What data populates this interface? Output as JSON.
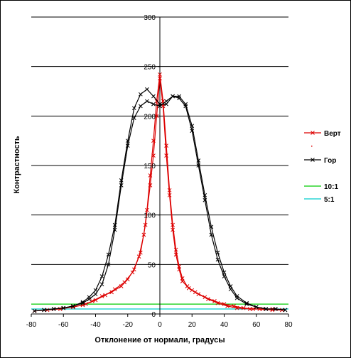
{
  "chart_data": {
    "type": "line",
    "title": "",
    "xlabel": "Отклонение от нормали, градусы",
    "ylabel": "Контрастность",
    "xlim": [
      -80,
      80
    ],
    "ylim": [
      0,
      300
    ],
    "x_ticks": [
      "-80",
      "-60",
      "-40",
      "-20",
      "0",
      "20",
      "40",
      "60",
      "80"
    ],
    "y_ticks": [
      "0",
      "50",
      "100",
      "150",
      "200",
      "250",
      "300"
    ],
    "grid": "horizontal",
    "legend_position": "right",
    "series": [
      {
        "name": "Верт",
        "color": "#dd0000",
        "marker": "x",
        "x": [
          -78,
          -72,
          -66,
          -60,
          -54,
          -48,
          -42,
          -36,
          -30,
          -24,
          -20,
          -16,
          -12,
          -9,
          -6,
          -4,
          -2,
          0,
          2,
          4,
          6,
          8,
          10,
          12,
          14,
          18,
          22,
          28,
          34,
          40,
          46,
          52,
          58,
          64,
          70,
          76
        ],
        "y": [
          3,
          4,
          5,
          6,
          7,
          9,
          13,
          18,
          22,
          28,
          35,
          45,
          62,
          90,
          130,
          160,
          200,
          238,
          210,
          160,
          120,
          85,
          60,
          45,
          33,
          26,
          22,
          17,
          13,
          10,
          8,
          6,
          5,
          5,
          5,
          4
        ]
      },
      {
        "name": "Верт",
        "color": "#dd0000",
        "marker": "x",
        "x": [
          -78,
          -70,
          -62,
          -54,
          -46,
          -40,
          -34,
          -28,
          -22,
          -17,
          -13,
          -10,
          -8,
          -6,
          -4,
          -2,
          0,
          2,
          4,
          6,
          8,
          10,
          12,
          14,
          17,
          20,
          24,
          30,
          36,
          42,
          48,
          56,
          62,
          70,
          76
        ],
        "y": [
          3,
          4,
          5,
          7,
          10,
          14,
          19,
          25,
          32,
          42,
          58,
          80,
          105,
          140,
          175,
          215,
          242,
          215,
          170,
          125,
          90,
          65,
          48,
          36,
          28,
          24,
          20,
          15,
          11,
          8,
          6,
          5,
          5,
          4,
          4
        ]
      },
      {
        "name": "Гор",
        "color": "#000000",
        "marker": "x",
        "x": [
          -78,
          -72,
          -66,
          -60,
          -54,
          -48,
          -44,
          -40,
          -36,
          -32,
          -28,
          -24,
          -20,
          -16,
          -12,
          -8,
          -4,
          0,
          4,
          8,
          12,
          16,
          20,
          24,
          28,
          32,
          36,
          40,
          44,
          48,
          54,
          60,
          66,
          72,
          78
        ],
        "y": [
          3,
          4,
          5,
          6,
          8,
          11,
          15,
          20,
          30,
          50,
          85,
          130,
          170,
          198,
          210,
          215,
          212,
          210,
          215,
          220,
          218,
          210,
          185,
          150,
          115,
          80,
          55,
          38,
          25,
          16,
          10,
          7,
          5,
          5,
          4
        ]
      },
      {
        "name": "Гор",
        "color": "#000000",
        "marker": "x",
        "x": [
          -78,
          -72,
          -66,
          -60,
          -54,
          -48,
          -44,
          -40,
          -36,
          -32,
          -28,
          -24,
          -20,
          -16,
          -12,
          -8,
          -4,
          0,
          4,
          8,
          12,
          16,
          20,
          24,
          28,
          32,
          36,
          40,
          44,
          48,
          54,
          60,
          66,
          72,
          78
        ],
        "y": [
          3,
          4,
          5,
          6,
          8,
          12,
          17,
          24,
          38,
          60,
          90,
          135,
          175,
          208,
          222,
          227,
          220,
          212,
          212,
          220,
          220,
          212,
          190,
          155,
          120,
          88,
          62,
          42,
          28,
          18,
          11,
          7,
          5,
          5,
          4
        ]
      },
      {
        "name": "10:1",
        "color": "#00cc00",
        "marker": "none",
        "x": [
          -80,
          80
        ],
        "y": [
          10,
          10
        ]
      },
      {
        "name": "5:1",
        "color": "#00cccc",
        "marker": "none",
        "x": [
          -80,
          80
        ],
        "y": [
          5,
          5
        ]
      }
    ],
    "legend": [
      {
        "label": "Верт",
        "color": "#dd0000",
        "marker": "x"
      },
      {
        "label": "Гор",
        "color": "#000000",
        "marker": "x"
      },
      {
        "label": "10:1",
        "color": "#00cc00",
        "marker": "none"
      },
      {
        "label": "5:1",
        "color": "#00cccc",
        "marker": "none"
      }
    ],
    "stray_mark": {
      "x": 0,
      "y": 0
    }
  }
}
